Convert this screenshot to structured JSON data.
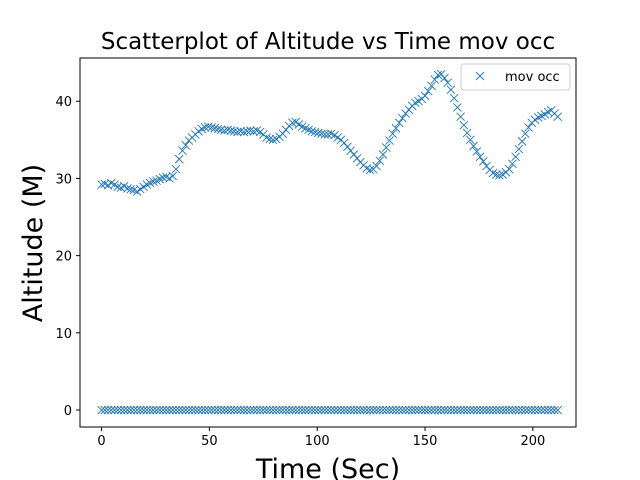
{
  "chart_data": {
    "type": "scatter",
    "title": "Scatterplot of Altitude vs Time mov occ",
    "xlabel": "Time (Sec)",
    "ylabel": "Altitude (M)",
    "xlim": [
      -10,
      220
    ],
    "ylim": [
      -2.2,
      45.6
    ],
    "x_ticks": [
      0,
      50,
      100,
      150,
      200
    ],
    "y_ticks": [
      0,
      10,
      20,
      30,
      40
    ],
    "grid": false,
    "legend": "top-right",
    "marker": "x",
    "color": "#1f77b4",
    "series": [
      {
        "name": "mov occ",
        "points": [
          [
            0,
            29.2
          ],
          [
            1.5,
            29.3
          ],
          [
            3,
            29.1
          ],
          [
            4.5,
            29.4
          ],
          [
            6,
            29.2
          ],
          [
            7.5,
            28.9
          ],
          [
            9,
            28.8
          ],
          [
            10.5,
            29.0
          ],
          [
            12,
            28.7
          ],
          [
            13.5,
            28.6
          ],
          [
            15,
            28.5
          ],
          [
            16.5,
            28.3
          ],
          [
            18,
            28.6
          ],
          [
            19.5,
            28.9
          ],
          [
            21,
            29.2
          ],
          [
            22.5,
            29.4
          ],
          [
            24,
            29.6
          ],
          [
            25.5,
            29.7
          ],
          [
            27,
            29.9
          ],
          [
            28.5,
            30.1
          ],
          [
            30,
            30.2
          ],
          [
            31.5,
            30.0
          ],
          [
            33,
            30.3
          ],
          [
            34.5,
            31.2
          ],
          [
            36,
            32.5
          ],
          [
            37.5,
            33.6
          ],
          [
            39,
            34.3
          ],
          [
            40.5,
            34.9
          ],
          [
            42,
            35.3
          ],
          [
            43.5,
            35.7
          ],
          [
            45,
            36.1
          ],
          [
            46.5,
            36.4
          ],
          [
            48,
            36.6
          ],
          [
            49.5,
            36.7
          ],
          [
            51,
            36.6
          ],
          [
            52.5,
            36.5
          ],
          [
            54,
            36.4
          ],
          [
            55.5,
            36.3
          ],
          [
            57,
            36.2
          ],
          [
            58.5,
            36.3
          ],
          [
            60,
            36.2
          ],
          [
            61.5,
            36.1
          ],
          [
            63,
            36.0
          ],
          [
            64.5,
            36.1
          ],
          [
            66,
            36.0
          ],
          [
            67.5,
            36.1
          ],
          [
            69,
            36.2
          ],
          [
            70.5,
            36.1
          ],
          [
            72,
            36.2
          ],
          [
            73.5,
            36.0
          ],
          [
            75,
            35.7
          ],
          [
            76.5,
            35.3
          ],
          [
            78,
            35.1
          ],
          [
            79.5,
            35.0
          ],
          [
            81,
            35.1
          ],
          [
            82.5,
            35.4
          ],
          [
            84,
            35.8
          ],
          [
            85.5,
            36.3
          ],
          [
            87,
            36.8
          ],
          [
            88.5,
            37.2
          ],
          [
            90,
            37.3
          ],
          [
            91.5,
            37.0
          ],
          [
            93,
            36.7
          ],
          [
            94.5,
            36.5
          ],
          [
            96,
            36.3
          ],
          [
            97.5,
            36.1
          ],
          [
            99,
            36.0
          ],
          [
            100.5,
            35.9
          ],
          [
            102,
            35.8
          ],
          [
            103.5,
            35.7
          ],
          [
            105,
            35.7
          ],
          [
            106.5,
            35.8
          ],
          [
            108,
            35.6
          ],
          [
            109.5,
            35.3
          ],
          [
            111,
            35.0
          ],
          [
            112.5,
            34.6
          ],
          [
            114,
            34.1
          ],
          [
            115.5,
            33.6
          ],
          [
            117,
            33.1
          ],
          [
            118.5,
            32.6
          ],
          [
            120,
            32.1
          ],
          [
            121.5,
            31.7
          ],
          [
            123,
            31.3
          ],
          [
            124.5,
            31.1
          ],
          [
            126,
            31.2
          ],
          [
            127.5,
            31.6
          ],
          [
            129,
            32.3
          ],
          [
            130.5,
            33.1
          ],
          [
            132,
            34.0
          ],
          [
            133.5,
            34.9
          ],
          [
            135,
            35.8
          ],
          [
            136.5,
            36.5
          ],
          [
            138,
            37.2
          ],
          [
            139.5,
            37.8
          ],
          [
            141,
            38.4
          ],
          [
            142.5,
            38.9
          ],
          [
            144,
            39.4
          ],
          [
            145.5,
            39.8
          ],
          [
            147,
            40.0
          ],
          [
            148.5,
            40.3
          ],
          [
            150,
            40.7
          ],
          [
            151.5,
            41.3
          ],
          [
            153,
            42.0
          ],
          [
            154.5,
            42.8
          ],
          [
            156,
            43.4
          ],
          [
            157.5,
            43.5
          ],
          [
            159,
            43.0
          ],
          [
            160.5,
            42.4
          ],
          [
            162,
            41.5
          ],
          [
            163.5,
            40.4
          ],
          [
            165,
            39.2
          ],
          [
            166.5,
            38.0
          ],
          [
            168,
            36.9
          ],
          [
            169.5,
            35.9
          ],
          [
            171,
            35.0
          ],
          [
            172.5,
            34.2
          ],
          [
            174,
            33.5
          ],
          [
            175.5,
            32.8
          ],
          [
            177,
            32.2
          ],
          [
            178.5,
            31.6
          ],
          [
            180,
            31.1
          ],
          [
            181.5,
            30.7
          ],
          [
            183,
            30.5
          ],
          [
            184.5,
            30.4
          ],
          [
            186,
            30.5
          ],
          [
            187.5,
            30.8
          ],
          [
            189,
            31.2
          ],
          [
            190.5,
            31.9
          ],
          [
            192,
            32.8
          ],
          [
            193.5,
            33.8
          ],
          [
            195,
            34.8
          ],
          [
            196.5,
            35.8
          ],
          [
            198,
            36.6
          ],
          [
            199.5,
            37.2
          ],
          [
            201,
            37.6
          ],
          [
            202.5,
            37.9
          ],
          [
            204,
            38.1
          ],
          [
            205.5,
            38.3
          ],
          [
            207,
            38.6
          ],
          [
            208.5,
            38.8
          ],
          [
            210,
            38.4
          ],
          [
            211.5,
            38.0
          ],
          [
            0,
            0
          ],
          [
            1.5,
            0
          ],
          [
            3,
            0
          ],
          [
            4.5,
            0
          ],
          [
            6,
            0
          ],
          [
            7.5,
            0
          ],
          [
            9,
            0
          ],
          [
            10.5,
            0
          ],
          [
            12,
            0
          ],
          [
            13.5,
            0
          ],
          [
            15,
            0
          ],
          [
            16.5,
            0
          ],
          [
            18,
            0
          ],
          [
            19.5,
            0
          ],
          [
            21,
            0
          ],
          [
            22.5,
            0
          ],
          [
            24,
            0
          ],
          [
            25.5,
            0
          ],
          [
            27,
            0
          ],
          [
            28.5,
            0
          ],
          [
            30,
            0
          ],
          [
            31.5,
            0
          ],
          [
            33,
            0
          ],
          [
            34.5,
            0
          ],
          [
            36,
            0
          ],
          [
            37.5,
            0
          ],
          [
            39,
            0
          ],
          [
            40.5,
            0
          ],
          [
            42,
            0
          ],
          [
            43.5,
            0
          ],
          [
            45,
            0
          ],
          [
            46.5,
            0
          ],
          [
            48,
            0
          ],
          [
            49.5,
            0
          ],
          [
            51,
            0
          ],
          [
            52.5,
            0
          ],
          [
            54,
            0
          ],
          [
            55.5,
            0
          ],
          [
            57,
            0
          ],
          [
            58.5,
            0
          ],
          [
            60,
            0
          ],
          [
            61.5,
            0
          ],
          [
            63,
            0
          ],
          [
            64.5,
            0
          ],
          [
            66,
            0
          ],
          [
            67.5,
            0
          ],
          [
            69,
            0
          ],
          [
            70.5,
            0
          ],
          [
            72,
            0
          ],
          [
            73.5,
            0
          ],
          [
            75,
            0
          ],
          [
            76.5,
            0
          ],
          [
            78,
            0
          ],
          [
            79.5,
            0
          ],
          [
            81,
            0
          ],
          [
            82.5,
            0
          ],
          [
            84,
            0
          ],
          [
            85.5,
            0
          ],
          [
            87,
            0
          ],
          [
            88.5,
            0
          ],
          [
            90,
            0
          ],
          [
            91.5,
            0
          ],
          [
            93,
            0
          ],
          [
            94.5,
            0
          ],
          [
            96,
            0
          ],
          [
            97.5,
            0
          ],
          [
            99,
            0
          ],
          [
            100.5,
            0
          ],
          [
            102,
            0
          ],
          [
            103.5,
            0
          ],
          [
            105,
            0
          ],
          [
            106.5,
            0
          ],
          [
            108,
            0
          ],
          [
            109.5,
            0
          ],
          [
            111,
            0
          ],
          [
            112.5,
            0
          ],
          [
            114,
            0
          ],
          [
            115.5,
            0
          ],
          [
            117,
            0
          ],
          [
            118.5,
            0
          ],
          [
            120,
            0
          ],
          [
            121.5,
            0
          ],
          [
            123,
            0
          ],
          [
            124.5,
            0
          ],
          [
            126,
            0
          ],
          [
            127.5,
            0
          ],
          [
            129,
            0
          ],
          [
            130.5,
            0
          ],
          [
            132,
            0
          ],
          [
            133.5,
            0
          ],
          [
            135,
            0
          ],
          [
            136.5,
            0
          ],
          [
            138,
            0
          ],
          [
            139.5,
            0
          ],
          [
            141,
            0
          ],
          [
            142.5,
            0
          ],
          [
            144,
            0
          ],
          [
            145.5,
            0
          ],
          [
            147,
            0
          ],
          [
            148.5,
            0
          ],
          [
            150,
            0
          ],
          [
            151.5,
            0
          ],
          [
            153,
            0
          ],
          [
            154.5,
            0
          ],
          [
            156,
            0
          ],
          [
            157.5,
            0
          ],
          [
            159,
            0
          ],
          [
            160.5,
            0
          ],
          [
            162,
            0
          ],
          [
            163.5,
            0
          ],
          [
            165,
            0
          ],
          [
            166.5,
            0
          ],
          [
            168,
            0
          ],
          [
            169.5,
            0
          ],
          [
            171,
            0
          ],
          [
            172.5,
            0
          ],
          [
            174,
            0
          ],
          [
            175.5,
            0
          ],
          [
            177,
            0
          ],
          [
            178.5,
            0
          ],
          [
            180,
            0
          ],
          [
            181.5,
            0
          ],
          [
            183,
            0
          ],
          [
            184.5,
            0
          ],
          [
            186,
            0
          ],
          [
            187.5,
            0
          ],
          [
            189,
            0
          ],
          [
            190.5,
            0
          ],
          [
            192,
            0
          ],
          [
            193.5,
            0
          ],
          [
            195,
            0
          ],
          [
            196.5,
            0
          ],
          [
            198,
            0
          ],
          [
            199.5,
            0
          ],
          [
            201,
            0
          ],
          [
            202.5,
            0
          ],
          [
            204,
            0
          ],
          [
            205.5,
            0
          ],
          [
            207,
            0
          ],
          [
            208.5,
            0
          ],
          [
            210,
            0
          ],
          [
            211.5,
            0
          ]
        ]
      }
    ]
  }
}
